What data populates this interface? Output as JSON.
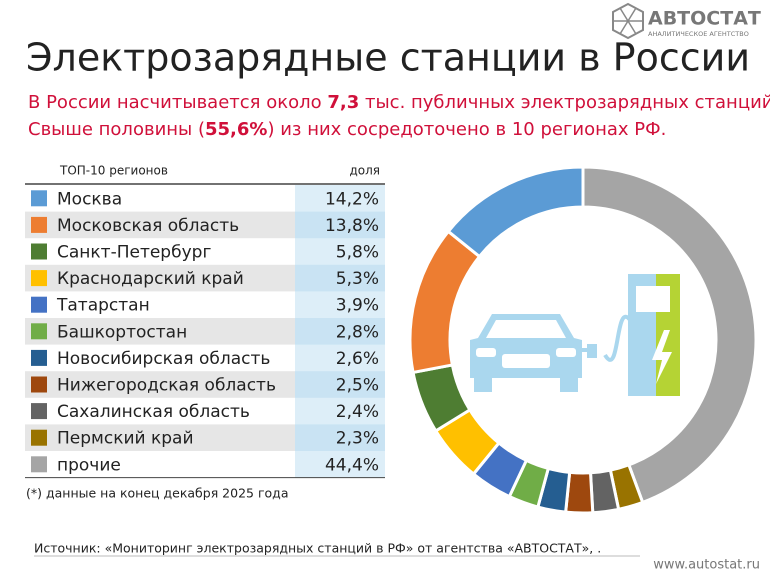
{
  "logo": {
    "name": "АВТОСТАТ",
    "tagline": "АНАЛИТИЧЕСКОЕ АГЕНТСТВО"
  },
  "subtitle": {
    "line1_start": "В России насчитывается около ",
    "line1_number": "7,3",
    "line1_end": " тыс. публичных электрозарядных станций.",
    "line1_mark": "*",
    "line2_start": "Свыше половины (",
    "line2_number": "55,6%",
    "line2_end": ") из них сосредоточено в 10 регионах РФ."
  },
  "footnote": "(*) данные на конец декабря 2025 года",
  "source": "Источник: «Мониторинг электрозарядных станций в РФ» от агентства «АВТОСТАТ», .",
  "url": "www.autostat.ru",
  "chart_data": {
    "type": "donut",
    "title": "Электрозарядные станции в России",
    "table_header": {
      "name": "ТОП-10 регионов",
      "value": "доля"
    },
    "categories": [
      "Москва",
      "Московская область",
      "Санкт-Петербург",
      "Краснодарский край",
      "Татарстан",
      "Башкортостан",
      "Новосибирская область",
      "Нижегородская область",
      "Сахалинская область",
      "Пермский край",
      "прочие"
    ],
    "values": [
      14.2,
      13.8,
      5.8,
      5.3,
      3.9,
      2.8,
      2.6,
      2.5,
      2.4,
      2.3,
      44.4
    ],
    "value_labels": [
      "14,2%",
      "13,8%",
      "5,8%",
      "5,3%",
      "3,9%",
      "2,8%",
      "2,6%",
      "2,5%",
      "2,4%",
      "2,3%",
      "44,4%"
    ],
    "colors": [
      "#5b9bd5",
      "#ed7d31",
      "#4e7d32",
      "#ffc000",
      "#4472c4",
      "#70ad47",
      "#255e91",
      "#9e480e",
      "#636363",
      "#997300",
      "#a5a5a5"
    ]
  }
}
